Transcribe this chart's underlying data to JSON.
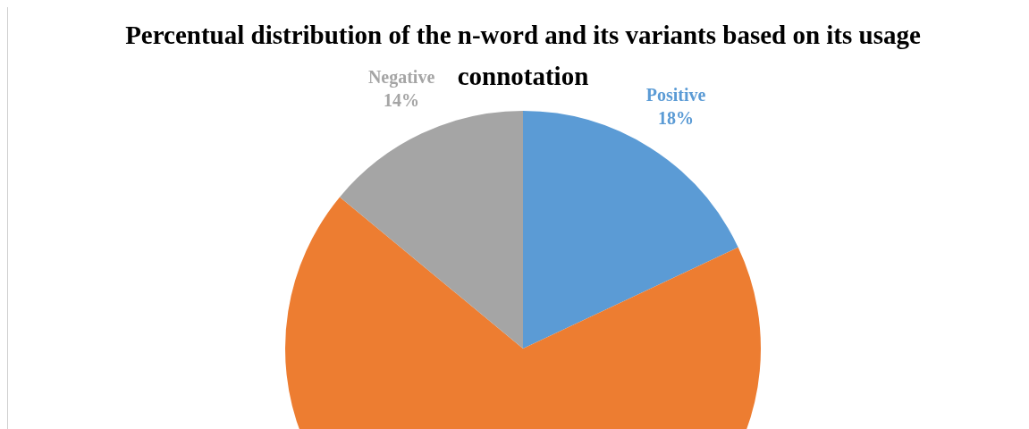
{
  "chart_data": {
    "type": "pie",
    "title": "Percentual distribution of the n-word and its variants based on its usage connotation",
    "categories": [
      "Positive",
      null,
      "Negative"
    ],
    "values": [
      18,
      68,
      14
    ],
    "colors": [
      "#5b9bd5",
      "#ed7d31",
      "#a5a5a5"
    ],
    "value_labels": [
      "18%",
      null,
      "14%"
    ],
    "legend": false
  }
}
